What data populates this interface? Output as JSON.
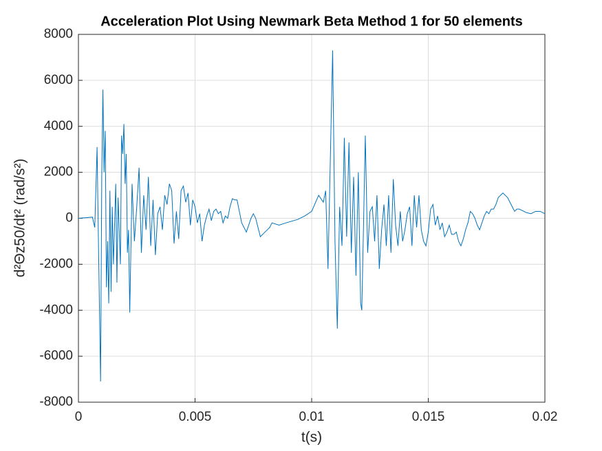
{
  "chart_data": {
    "type": "line",
    "title": "Acceleration Plot Using Newmark Beta Method 1 for 50 elements",
    "x_label": "t(s)",
    "y_label": "d²Θz50/dt²  (rad/s²)",
    "color": "#0072bd",
    "grid": true,
    "xlim": [
      0,
      0.02
    ],
    "xticks": [
      0,
      0.005,
      0.01,
      0.015,
      0.02
    ],
    "ylim": [
      -8000,
      8000
    ],
    "yticks": [
      -8000,
      -6000,
      -4000,
      -2000,
      0,
      2000,
      4000,
      6000,
      8000
    ],
    "x": [
      0,
      0.0006,
      0.0007,
      0.0008,
      0.00085,
      0.00095,
      0.001,
      0.00105,
      0.0011,
      0.00115,
      0.0012,
      0.00125,
      0.0013,
      0.00135,
      0.0014,
      0.00145,
      0.0015,
      0.0016,
      0.00165,
      0.0017,
      0.0018,
      0.00185,
      0.0019,
      0.00195,
      0.002,
      0.00205,
      0.0021,
      0.00215,
      0.0022,
      0.0023,
      0.0024,
      0.0025,
      0.0026,
      0.0027,
      0.0028,
      0.0029,
      0.003,
      0.0031,
      0.0032,
      0.0033,
      0.0034,
      0.0035,
      0.0036,
      0.0037,
      0.0038,
      0.0039,
      0.004,
      0.0041,
      0.0042,
      0.0043,
      0.0044,
      0.0045,
      0.0046,
      0.0047,
      0.0048,
      0.0049,
      0.005,
      0.0051,
      0.0052,
      0.0053,
      0.0054,
      0.0055,
      0.0056,
      0.0057,
      0.0058,
      0.0059,
      0.006,
      0.0061,
      0.0062,
      0.0063,
      0.0064,
      0.0065,
      0.0066,
      0.0067,
      0.0068,
      0.0069,
      0.007,
      0.0072,
      0.0074,
      0.0075,
      0.0076,
      0.0077,
      0.0078,
      0.008,
      0.0082,
      0.0083,
      0.0086,
      0.0089,
      0.0094,
      0.0097,
      0.01,
      0.0103,
      0.0105,
      0.0106,
      0.0107,
      0.0109,
      0.011,
      0.0111,
      0.0112,
      0.0113,
      0.0114,
      0.0115,
      0.0116,
      0.0117,
      0.0118,
      0.0119,
      0.012,
      0.0121,
      0.01215,
      0.0122,
      0.0123,
      0.0124,
      0.0125,
      0.0126,
      0.0127,
      0.0128,
      0.0129,
      0.013,
      0.0131,
      0.0132,
      0.0133,
      0.0134,
      0.0135,
      0.0136,
      0.0137,
      0.0138,
      0.0139,
      0.014,
      0.0141,
      0.0142,
      0.0143,
      0.0144,
      0.0145,
      0.0146,
      0.0147,
      0.0148,
      0.0149,
      0.015,
      0.0151,
      0.0152,
      0.0153,
      0.0154,
      0.0155,
      0.0156,
      0.0157,
      0.0158,
      0.0159,
      0.016,
      0.0161,
      0.0162,
      0.0163,
      0.0164,
      0.0165,
      0.0166,
      0.0167,
      0.0168,
      0.0169,
      0.017,
      0.0171,
      0.0172,
      0.0173,
      0.0174,
      0.0175,
      0.0176,
      0.0177,
      0.0178,
      0.0179,
      0.018,
      0.0181,
      0.0182,
      0.0183,
      0.0184,
      0.0185,
      0.0186,
      0.0187,
      0.0188,
      0.0189,
      0.019,
      0.0192,
      0.0194,
      0.0196,
      0.0198,
      0.02
    ],
    "values": [
      0,
      50,
      -400,
      3100,
      -500,
      -7100,
      1800,
      5600,
      2000,
      3800,
      -3000,
      -1000,
      -3700,
      1200,
      -3200,
      500,
      -2000,
      1500,
      -2800,
      900,
      -2000,
      3600,
      2800,
      4100,
      1500,
      2800,
      -1500,
      -500,
      -4100,
      1500,
      -1000,
      500,
      2200,
      -1500,
      1000,
      -500,
      1800,
      -1200,
      800,
      -1600,
      200,
      500,
      -500,
      1000,
      600,
      1500,
      1200,
      -1100,
      300,
      -900,
      1200,
      1400,
      700,
      1100,
      -300,
      800,
      500,
      -200,
      200,
      -1000,
      -300,
      100,
      400,
      -100,
      300,
      400,
      200,
      300,
      -200,
      100,
      0,
      500,
      850,
      800,
      800,
      300,
      -200,
      -600,
      0,
      200,
      0,
      -400,
      -800,
      -600,
      -400,
      -200,
      -300,
      -200,
      -50,
      100,
      300,
      1000,
      700,
      1200,
      -2200,
      7300,
      -1000,
      -4800,
      500,
      -1200,
      3500,
      -800,
      3300,
      -1500,
      1800,
      -2500,
      2000,
      -3700,
      -4000,
      -1500,
      3600,
      -1500,
      300,
      500,
      -1000,
      1000,
      -2200,
      -500,
      600,
      -1200,
      1000,
      -1500,
      1700,
      -300,
      -1200,
      300,
      -1000,
      -500,
      200,
      500,
      -1200,
      1000,
      -400,
      1000,
      -500,
      -1000,
      -1200,
      -600,
      400,
      600,
      -300,
      100,
      -500,
      -200,
      -800,
      -600,
      -300,
      -700,
      -700,
      -600,
      -1000,
      -1200,
      -900,
      -500,
      -200,
      300,
      200,
      0,
      -300,
      -500,
      -200,
      100,
      300,
      200,
      400,
      400,
      600,
      900,
      1000,
      1100,
      1000,
      900,
      700,
      500,
      300,
      400,
      400,
      350,
      250,
      200,
      300,
      300,
      200
    ]
  }
}
